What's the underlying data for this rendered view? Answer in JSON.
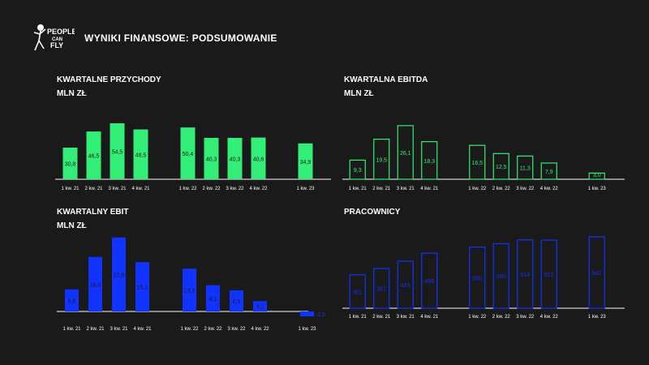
{
  "header": {
    "title": "WYNIKI FINANSOWE: PODSUMOWANIE",
    "logo_text": [
      "PEOPLE",
      "CAN",
      "FLY"
    ]
  },
  "colors": {
    "background": "#1a1a1a",
    "green": "#33ee77",
    "blue": "#1133ff",
    "text": "#ffffff"
  },
  "chart_data": [
    {
      "id": "przychody",
      "type": "bar",
      "style": "filled",
      "color": "#33ee77",
      "title": "KWARTALNE PRZYCHODY",
      "subtitle": "MLN ZŁ",
      "categories": [
        "1 kw. 21",
        "2 kw. 21",
        "3 kw. 21",
        "4 kw. 21",
        "",
        "1 kw. 22",
        "2 kw. 22",
        "3 kw. 22",
        "4 kw. 22",
        "",
        "1 kw. 23"
      ],
      "values": [
        30.8,
        46.5,
        54.5,
        48.5,
        null,
        50.4,
        40.3,
        40.3,
        40.6,
        null,
        34.9
      ],
      "labels": [
        "30,8",
        "46,5",
        "54,5",
        "48,5",
        "",
        "50,4",
        "40,3",
        "40,3",
        "40,6",
        "",
        "34,9"
      ],
      "ylim": [
        0,
        60
      ]
    },
    {
      "id": "ebitda",
      "type": "bar",
      "style": "outline",
      "color": "#33ee77",
      "title": "KWARTALNA EBITDA",
      "subtitle": "MLN ZŁ",
      "categories": [
        "1 kw. 21",
        "2 kw. 21",
        "3 kw. 21",
        "4 kw. 21",
        "",
        "1 kw. 22",
        "2 kw. 22",
        "3 kw. 22",
        "4 kw. 22",
        "",
        "1 kw. 23"
      ],
      "values": [
        9.3,
        19.5,
        26.1,
        18.3,
        null,
        16.5,
        12.5,
        11.3,
        7.9,
        null,
        3.0
      ],
      "labels": [
        "9,3",
        "19,5",
        "26,1",
        "18,3",
        "",
        "16,5",
        "12,5",
        "11,3",
        "7,9",
        "",
        "3,0"
      ],
      "ylim": [
        0,
        30
      ]
    },
    {
      "id": "ebit",
      "type": "bar",
      "style": "filled",
      "color": "#1133ff",
      "title": "KWARTALNY EBIT",
      "subtitle": "MLN ZŁ",
      "categories": [
        "1 kw. 21",
        "2 kw. 21",
        "3 kw. 21",
        "4 kw. 21",
        "",
        "1 kw. 22",
        "2 kw. 22",
        "3 kw. 22",
        "4 kw. 22",
        "",
        "1 kw. 23"
      ],
      "values": [
        6.8,
        16.8,
        22.8,
        15.2,
        null,
        13.2,
        8.1,
        6.5,
        3.2,
        null,
        -1.5
      ],
      "labels": [
        "6,8",
        "16,8",
        "22,8",
        "15,2",
        "",
        "13,2",
        "8,1",
        "6,5",
        "3,2",
        "",
        "-1,5"
      ],
      "ylim": [
        -2,
        25
      ]
    },
    {
      "id": "pracownicy",
      "type": "bar",
      "style": "outline",
      "color": "#1133ff",
      "title": "PRACOWNICY",
      "subtitle": "",
      "categories": [
        "1 kw. 21",
        "2 kw. 21",
        "3 kw. 21",
        "4 kw. 21",
        "",
        "1 kw. 22",
        "2 kw. 22",
        "3 kw. 22",
        "4 kw. 22",
        "",
        "1 kw. 23"
      ],
      "values": [
        301,
        357,
        423,
        495,
        null,
        550,
        580,
        614,
        612,
        null,
        642
      ],
      "labels": [
        "301",
        "357",
        "423",
        "495",
        "",
        "550",
        "580",
        "614",
        "612",
        "",
        "642"
      ],
      "ylim": [
        0,
        700
      ]
    }
  ]
}
